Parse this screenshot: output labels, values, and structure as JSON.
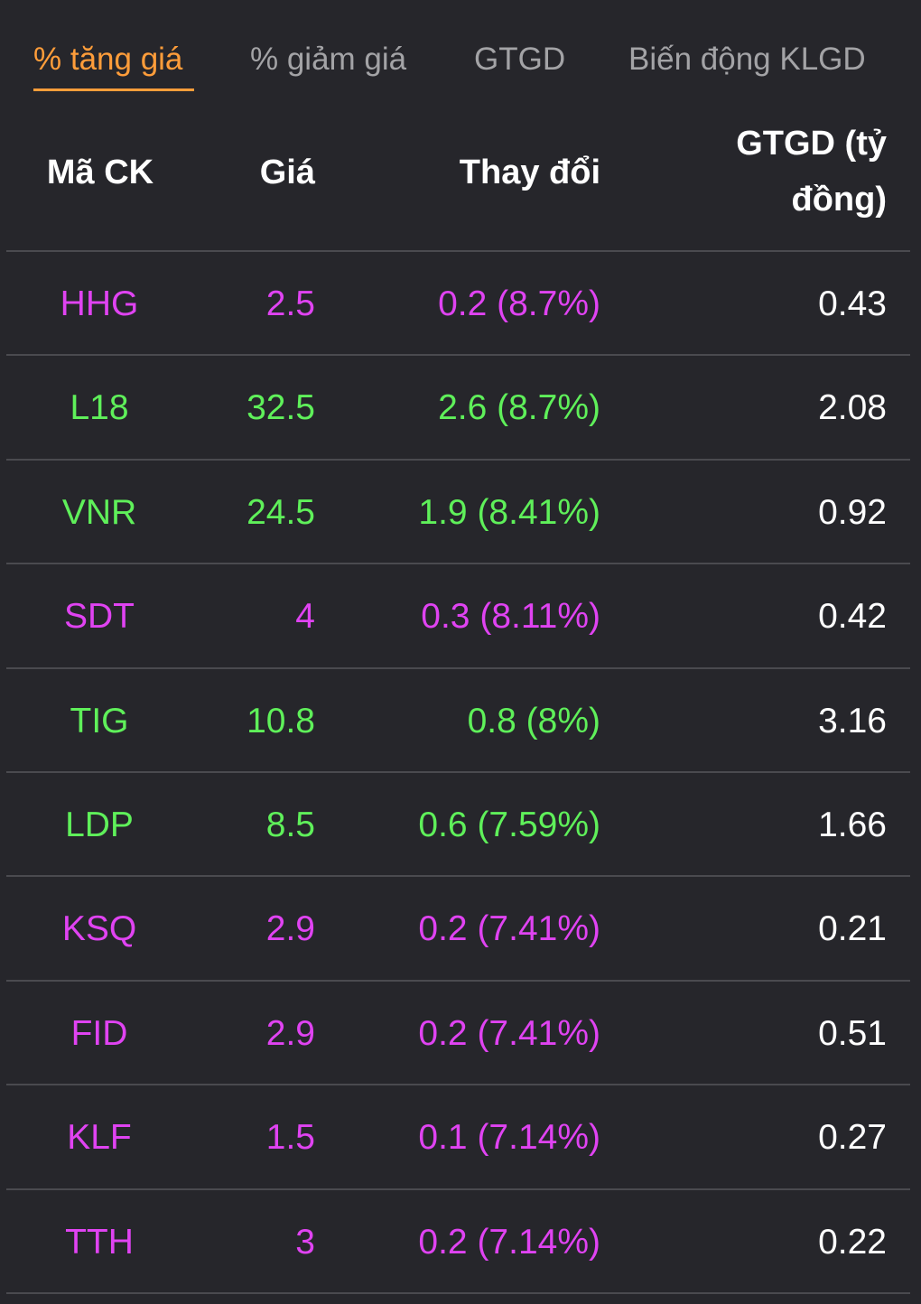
{
  "tabs": [
    {
      "label": "% tăng giá",
      "active": true
    },
    {
      "label": "% giảm giá",
      "active": false
    },
    {
      "label": "GTGD",
      "active": false
    },
    {
      "label": "Biến động KLGD",
      "active": false
    }
  ],
  "headers": {
    "code": "Mã CK",
    "price": "Giá",
    "change": "Thay đổi",
    "value_line1": "GTGD (tỷ",
    "value_line2": "đồng)"
  },
  "colors": {
    "accent": "#ff9d3a",
    "ceiling": "#e043f2",
    "up": "#5ff05a",
    "background": "#26262b"
  },
  "rows": [
    {
      "code": "HHG",
      "price": "2.5",
      "change": "0.2 (8.7%)",
      "value": "0.43",
      "status": "ceiling"
    },
    {
      "code": "L18",
      "price": "32.5",
      "change": "2.6 (8.7%)",
      "value": "2.08",
      "status": "up"
    },
    {
      "code": "VNR",
      "price": "24.5",
      "change": "1.9 (8.41%)",
      "value": "0.92",
      "status": "up"
    },
    {
      "code": "SDT",
      "price": "4",
      "change": "0.3 (8.11%)",
      "value": "0.42",
      "status": "ceiling"
    },
    {
      "code": "TIG",
      "price": "10.8",
      "change": "0.8 (8%)",
      "value": "3.16",
      "status": "up"
    },
    {
      "code": "LDP",
      "price": "8.5",
      "change": "0.6 (7.59%)",
      "value": "1.66",
      "status": "up"
    },
    {
      "code": "KSQ",
      "price": "2.9",
      "change": "0.2 (7.41%)",
      "value": "0.21",
      "status": "ceiling"
    },
    {
      "code": "FID",
      "price": "2.9",
      "change": "0.2 (7.41%)",
      "value": "0.51",
      "status": "ceiling"
    },
    {
      "code": "KLF",
      "price": "1.5",
      "change": "0.1 (7.14%)",
      "value": "0.27",
      "status": "ceiling"
    },
    {
      "code": "TTH",
      "price": "3",
      "change": "0.2 (7.14%)",
      "value": "0.22",
      "status": "ceiling"
    }
  ]
}
